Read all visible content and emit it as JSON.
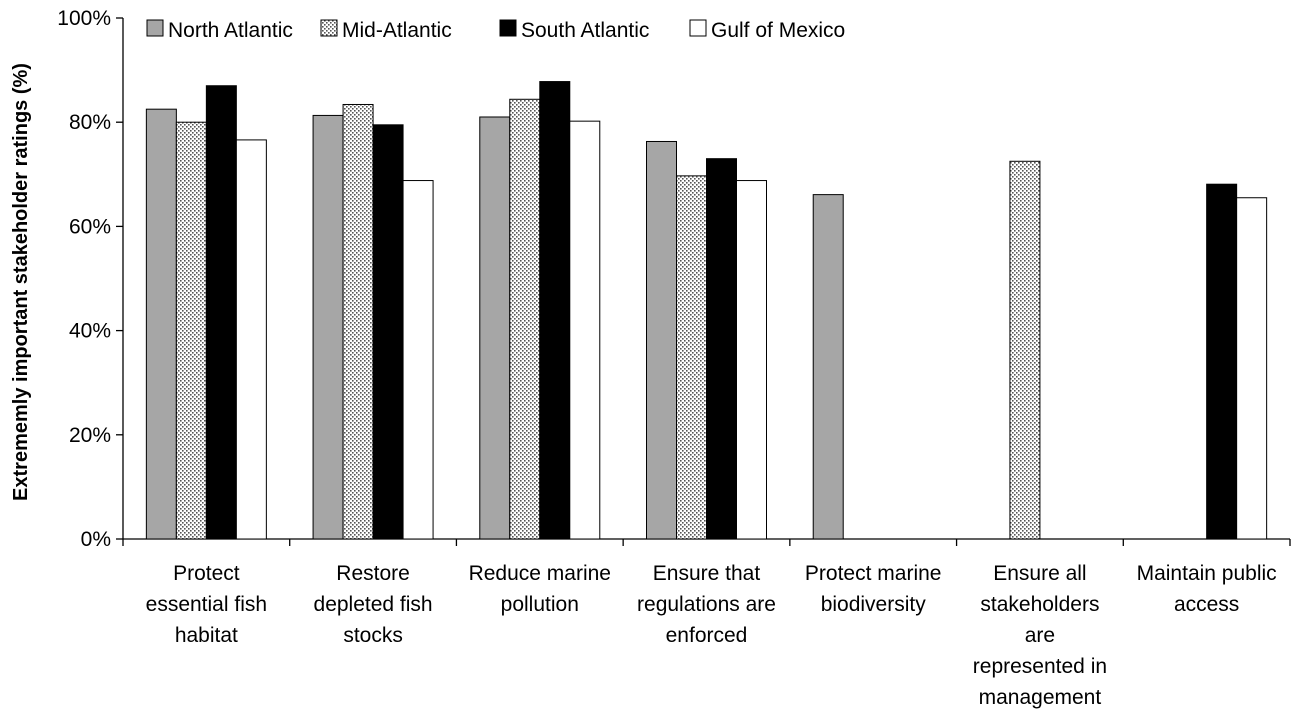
{
  "chart_data": {
    "type": "bar",
    "title": "",
    "xlabel": "",
    "ylabel": "Extrememly important stakeholder ratings (%)",
    "ylim": [
      0,
      100
    ],
    "y_ticks": [
      {
        "value": 0,
        "label": "0%"
      },
      {
        "value": 20,
        "label": "20%"
      },
      {
        "value": 40,
        "label": "40%"
      },
      {
        "value": 60,
        "label": "60%"
      },
      {
        "value": 80,
        "label": "80%"
      },
      {
        "value": 100,
        "label": "100%"
      }
    ],
    "grid": false,
    "legend_position": "top",
    "categories": [
      [
        "Protect",
        "essential fish",
        "habitat"
      ],
      [
        "Restore",
        "depleted fish",
        "stocks"
      ],
      [
        "Reduce marine",
        "pollution"
      ],
      [
        "Ensure that",
        "regulations are",
        "enforced"
      ],
      [
        "Protect marine",
        "biodiversity"
      ],
      [
        "Ensure all",
        "stakeholders",
        "are",
        "represented in",
        "management"
      ],
      [
        "Maintain public",
        "access"
      ]
    ],
    "series": [
      {
        "name": "North Atlantic",
        "pattern": "solid-gray",
        "fill": "#a6a6a6",
        "values": [
          82.5,
          81.3,
          81.0,
          76.3,
          66.1,
          null,
          null
        ]
      },
      {
        "name": "Mid-Atlantic",
        "pattern": "dotted",
        "fill": "#e8e8e8",
        "values": [
          80.0,
          83.4,
          84.4,
          69.7,
          null,
          72.5,
          null
        ]
      },
      {
        "name": "South Atlantic",
        "pattern": "solid-black",
        "fill": "#000000",
        "values": [
          87.0,
          79.5,
          87.8,
          73.0,
          null,
          null,
          68.1
        ]
      },
      {
        "name": "Gulf of Mexico",
        "pattern": "solid-white",
        "fill": "#ffffff",
        "values": [
          76.6,
          68.8,
          80.2,
          68.8,
          null,
          null,
          65.5
        ]
      }
    ]
  }
}
